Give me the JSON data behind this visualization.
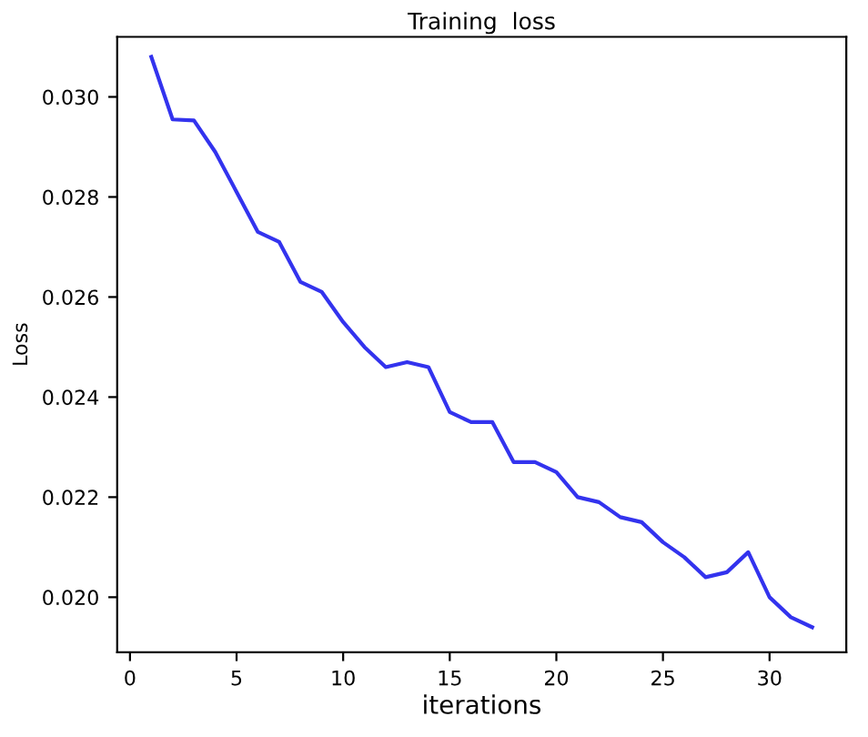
{
  "chart_data": {
    "type": "line",
    "title": "Training  loss",
    "xlabel": "iterations",
    "ylabel": "Loss",
    "x": [
      1,
      2,
      3,
      4,
      5,
      6,
      7,
      8,
      9,
      10,
      11,
      12,
      13,
      14,
      15,
      16,
      17,
      18,
      19,
      20,
      21,
      22,
      23,
      24,
      25,
      26,
      27,
      28,
      29,
      30,
      31,
      32
    ],
    "series": [
      {
        "color": "#3333ee",
        "values": [
          0.0308,
          0.02955,
          0.02953,
          0.0289,
          0.0281,
          0.0273,
          0.0271,
          0.0263,
          0.0261,
          0.0255,
          0.025,
          0.0246,
          0.0247,
          0.0246,
          0.0237,
          0.0235,
          0.0235,
          0.0227,
          0.0227,
          0.0225,
          0.022,
          0.0219,
          0.0216,
          0.0215,
          0.0211,
          0.0208,
          0.0204,
          0.0205,
          0.0209,
          0.02,
          0.0196,
          0.0194
        ]
      }
    ],
    "xlim": [
      -0.6,
      33.6
    ],
    "ylim": [
      0.0189,
      0.0312
    ],
    "xticks": [
      0,
      5,
      10,
      15,
      20,
      25,
      30
    ],
    "yticks": [
      {
        "value": 0.02,
        "label": "0.020"
      },
      {
        "value": 0.022,
        "label": "0.022"
      },
      {
        "value": 0.024,
        "label": "0.024"
      },
      {
        "value": 0.026,
        "label": "0.026"
      },
      {
        "value": 0.028,
        "label": "0.028"
      },
      {
        "value": 0.03,
        "label": "0.030"
      }
    ],
    "grid": false
  }
}
